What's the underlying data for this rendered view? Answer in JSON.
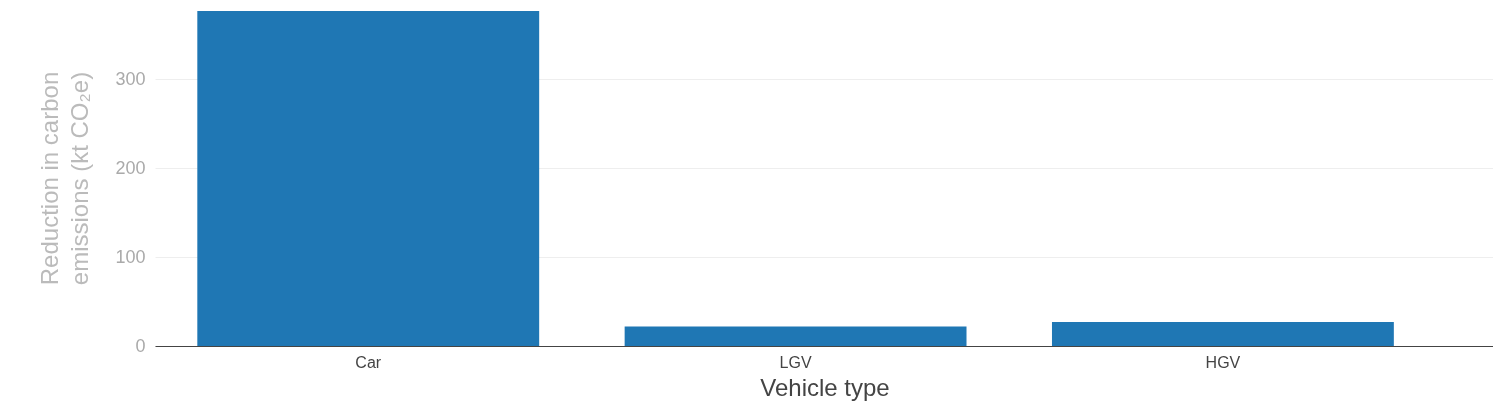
{
  "chart_data": {
    "type": "bar",
    "xlabel": "Vehicle type",
    "ylabel": "Reduction in carbon emissions (kt CO₂e)",
    "categories": [
      "Car",
      "LGV",
      "HGV"
    ],
    "series": [
      {
        "color": "#1f77b4",
        "values": [
          377,
          22,
          27
        ]
      }
    ],
    "ylim": [
      0,
      378
    ],
    "yticks": [
      0,
      100,
      200,
      300
    ],
    "grid": "y"
  }
}
